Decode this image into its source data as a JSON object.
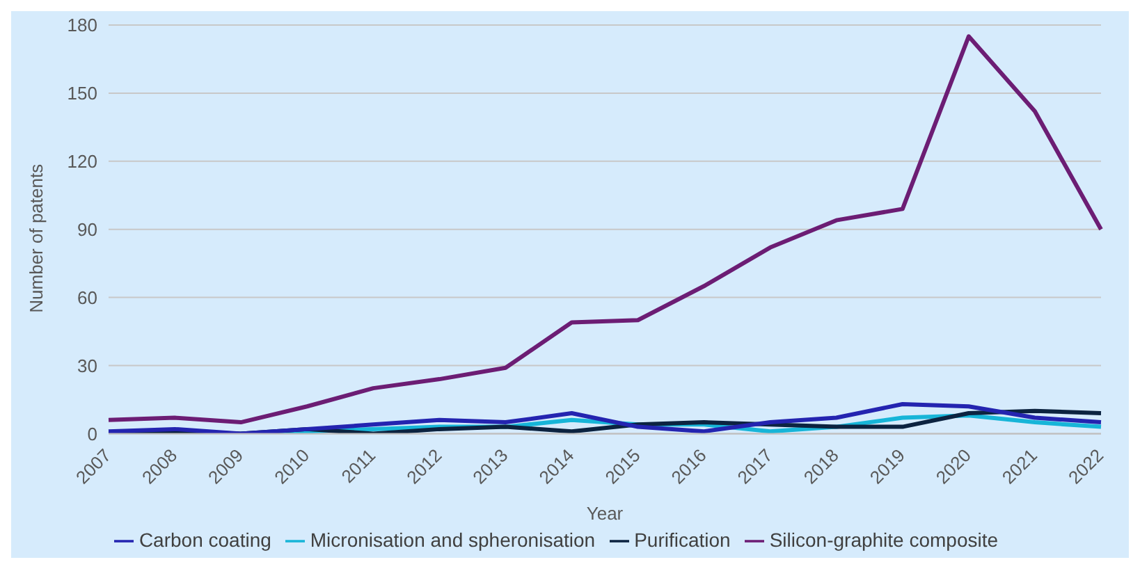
{
  "chart_data": {
    "type": "line",
    "xlabel": "Year",
    "ylabel": "Number of patents",
    "categories": [
      "2007",
      "2008",
      "2009",
      "2010",
      "2011",
      "2012",
      "2013",
      "2014",
      "2015",
      "2016",
      "2017",
      "2018",
      "2019",
      "2020",
      "2021",
      "2022"
    ],
    "series": [
      {
        "name": "Micronisation and spheronisation",
        "color": "#17b5d8",
        "values": [
          null,
          null,
          0,
          1,
          2,
          3,
          3,
          6,
          4,
          4,
          1,
          3,
          7,
          8,
          5,
          3
        ]
      },
      {
        "name": "Purification",
        "color": "#0c2340",
        "values": [
          0,
          1,
          0,
          2,
          0,
          2,
          3,
          1,
          4,
          5,
          4,
          3,
          3,
          9,
          10,
          9
        ]
      },
      {
        "name": "Carbon coating",
        "color": "#2424b0",
        "values": [
          1,
          2,
          0,
          2,
          4,
          6,
          5,
          9,
          3,
          1,
          5,
          7,
          13,
          12,
          7,
          5
        ]
      },
      {
        "name": "Silicon-graphite composite",
        "color": "#6c1d74",
        "values": [
          6,
          7,
          5,
          12,
          20,
          24,
          29,
          49,
          50,
          65,
          82,
          94,
          99,
          175,
          142,
          90
        ]
      }
    ],
    "ylim": [
      0,
      180
    ],
    "yticks": [
      0,
      30,
      60,
      90,
      120,
      150,
      180
    ],
    "grid": "y",
    "legend": "bottom",
    "marker": "none",
    "line_style": "solid"
  }
}
